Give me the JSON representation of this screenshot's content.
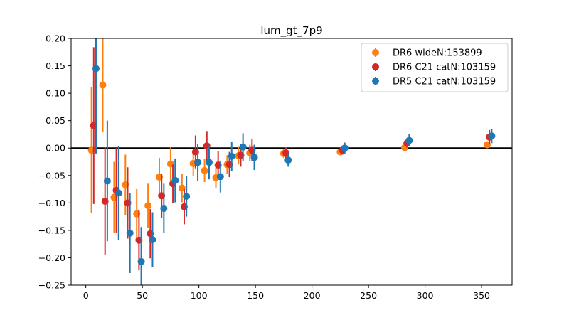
{
  "chart_data": {
    "type": "scatter",
    "title": "lum_gt_7p9",
    "xlabel": "",
    "ylabel": "",
    "xlim": [
      -13,
      377
    ],
    "ylim": [
      -0.25,
      0.2
    ],
    "x_ticks": [
      0,
      50,
      100,
      150,
      200,
      250,
      300,
      350
    ],
    "x_tick_labels": [
      "0",
      "50",
      "100",
      "150",
      "200",
      "250",
      "300",
      "350"
    ],
    "y_ticks": [
      -0.25,
      -0.2,
      -0.15,
      -0.1,
      -0.05,
      0.0,
      0.05,
      0.1,
      0.15,
      0.2
    ],
    "y_tick_labels": [
      "−0.25",
      "−0.20",
      "−0.15",
      "−0.10",
      "−0.05",
      "0.00",
      "0.05",
      "0.10",
      "0.15",
      "0.20"
    ],
    "reference_line_y": 0,
    "grid": false,
    "legend_position": "top-right",
    "series": [
      {
        "name": "DR6 wideN:153899",
        "color": "#ff7f0e",
        "points": [
          {
            "x": 5,
            "y": -0.004,
            "err": 0.115
          },
          {
            "x": 15,
            "y": 0.115,
            "err": 0.085
          },
          {
            "x": 25,
            "y": -0.09,
            "err": 0.065
          },
          {
            "x": 35,
            "y": -0.067,
            "err": 0.055
          },
          {
            "x": 45,
            "y": -0.12,
            "err": 0.045
          },
          {
            "x": 55,
            "y": -0.105,
            "err": 0.04
          },
          {
            "x": 65,
            "y": -0.053,
            "err": 0.035
          },
          {
            "x": 75,
            "y": -0.029,
            "err": 0.03
          },
          {
            "x": 85,
            "y": -0.073,
            "err": 0.026
          },
          {
            "x": 95,
            "y": -0.028,
            "err": 0.023
          },
          {
            "x": 105,
            "y": -0.041,
            "err": 0.021
          },
          {
            "x": 115,
            "y": -0.054,
            "err": 0.019
          },
          {
            "x": 125,
            "y": -0.03,
            "err": 0.017
          },
          {
            "x": 135,
            "y": -0.014,
            "err": 0.016
          },
          {
            "x": 145,
            "y": -0.009,
            "err": 0.015
          },
          {
            "x": 175,
            "y": -0.01,
            "err": 0.008
          },
          {
            "x": 225,
            "y": -0.007,
            "err": 0.006
          },
          {
            "x": 282,
            "y": 0.001,
            "err": 0.006
          },
          {
            "x": 355,
            "y": 0.006,
            "err": 0.006
          }
        ]
      },
      {
        "name": "DR6 C21 catN:103159",
        "color": "#d62728",
        "points": [
          {
            "x": 7,
            "y": 0.041,
            "err": 0.143
          },
          {
            "x": 17,
            "y": -0.097,
            "err": 0.098
          },
          {
            "x": 27,
            "y": -0.077,
            "err": 0.077
          },
          {
            "x": 37,
            "y": -0.1,
            "err": 0.065
          },
          {
            "x": 47,
            "y": -0.168,
            "err": 0.055
          },
          {
            "x": 57,
            "y": -0.156,
            "err": 0.045
          },
          {
            "x": 67,
            "y": -0.087,
            "err": 0.04
          },
          {
            "x": 77,
            "y": -0.065,
            "err": 0.035
          },
          {
            "x": 87,
            "y": -0.107,
            "err": 0.032
          },
          {
            "x": 97,
            "y": -0.007,
            "err": 0.03
          },
          {
            "x": 107,
            "y": 0.004,
            "err": 0.027
          },
          {
            "x": 117,
            "y": -0.031,
            "err": 0.025
          },
          {
            "x": 127,
            "y": -0.03,
            "err": 0.023
          },
          {
            "x": 137,
            "y": -0.013,
            "err": 0.021
          },
          {
            "x": 147,
            "y": -0.004,
            "err": 0.02
          },
          {
            "x": 177,
            "y": -0.009,
            "err": 0.01
          },
          {
            "x": 227,
            "y": -0.004,
            "err": 0.008
          },
          {
            "x": 284,
            "y": 0.009,
            "err": 0.008
          },
          {
            "x": 357,
            "y": 0.02,
            "err": 0.013
          }
        ]
      },
      {
        "name": "DR5 C21 catN:103159",
        "color": "#1f77b4",
        "points": [
          {
            "x": 9,
            "y": 0.145,
            "err": 0.155
          },
          {
            "x": 19,
            "y": -0.06,
            "err": 0.11
          },
          {
            "x": 29,
            "y": -0.082,
            "err": 0.086
          },
          {
            "x": 39,
            "y": -0.155,
            "err": 0.073
          },
          {
            "x": 49,
            "y": -0.207,
            "err": 0.063
          },
          {
            "x": 59,
            "y": -0.167,
            "err": 0.05
          },
          {
            "x": 69,
            "y": -0.11,
            "err": 0.045
          },
          {
            "x": 79,
            "y": -0.059,
            "err": 0.04
          },
          {
            "x": 89,
            "y": -0.088,
            "err": 0.037
          },
          {
            "x": 99,
            "y": -0.026,
            "err": 0.034
          },
          {
            "x": 109,
            "y": -0.026,
            "err": 0.031
          },
          {
            "x": 119,
            "y": -0.052,
            "err": 0.029
          },
          {
            "x": 129,
            "y": -0.015,
            "err": 0.027
          },
          {
            "x": 139,
            "y": 0.002,
            "err": 0.025
          },
          {
            "x": 149,
            "y": -0.017,
            "err": 0.023
          },
          {
            "x": 179,
            "y": -0.022,
            "err": 0.012
          },
          {
            "x": 229,
            "y": 0.0,
            "err": 0.01
          },
          {
            "x": 286,
            "y": 0.014,
            "err": 0.011
          },
          {
            "x": 359,
            "y": 0.022,
            "err": 0.013
          }
        ]
      }
    ]
  }
}
